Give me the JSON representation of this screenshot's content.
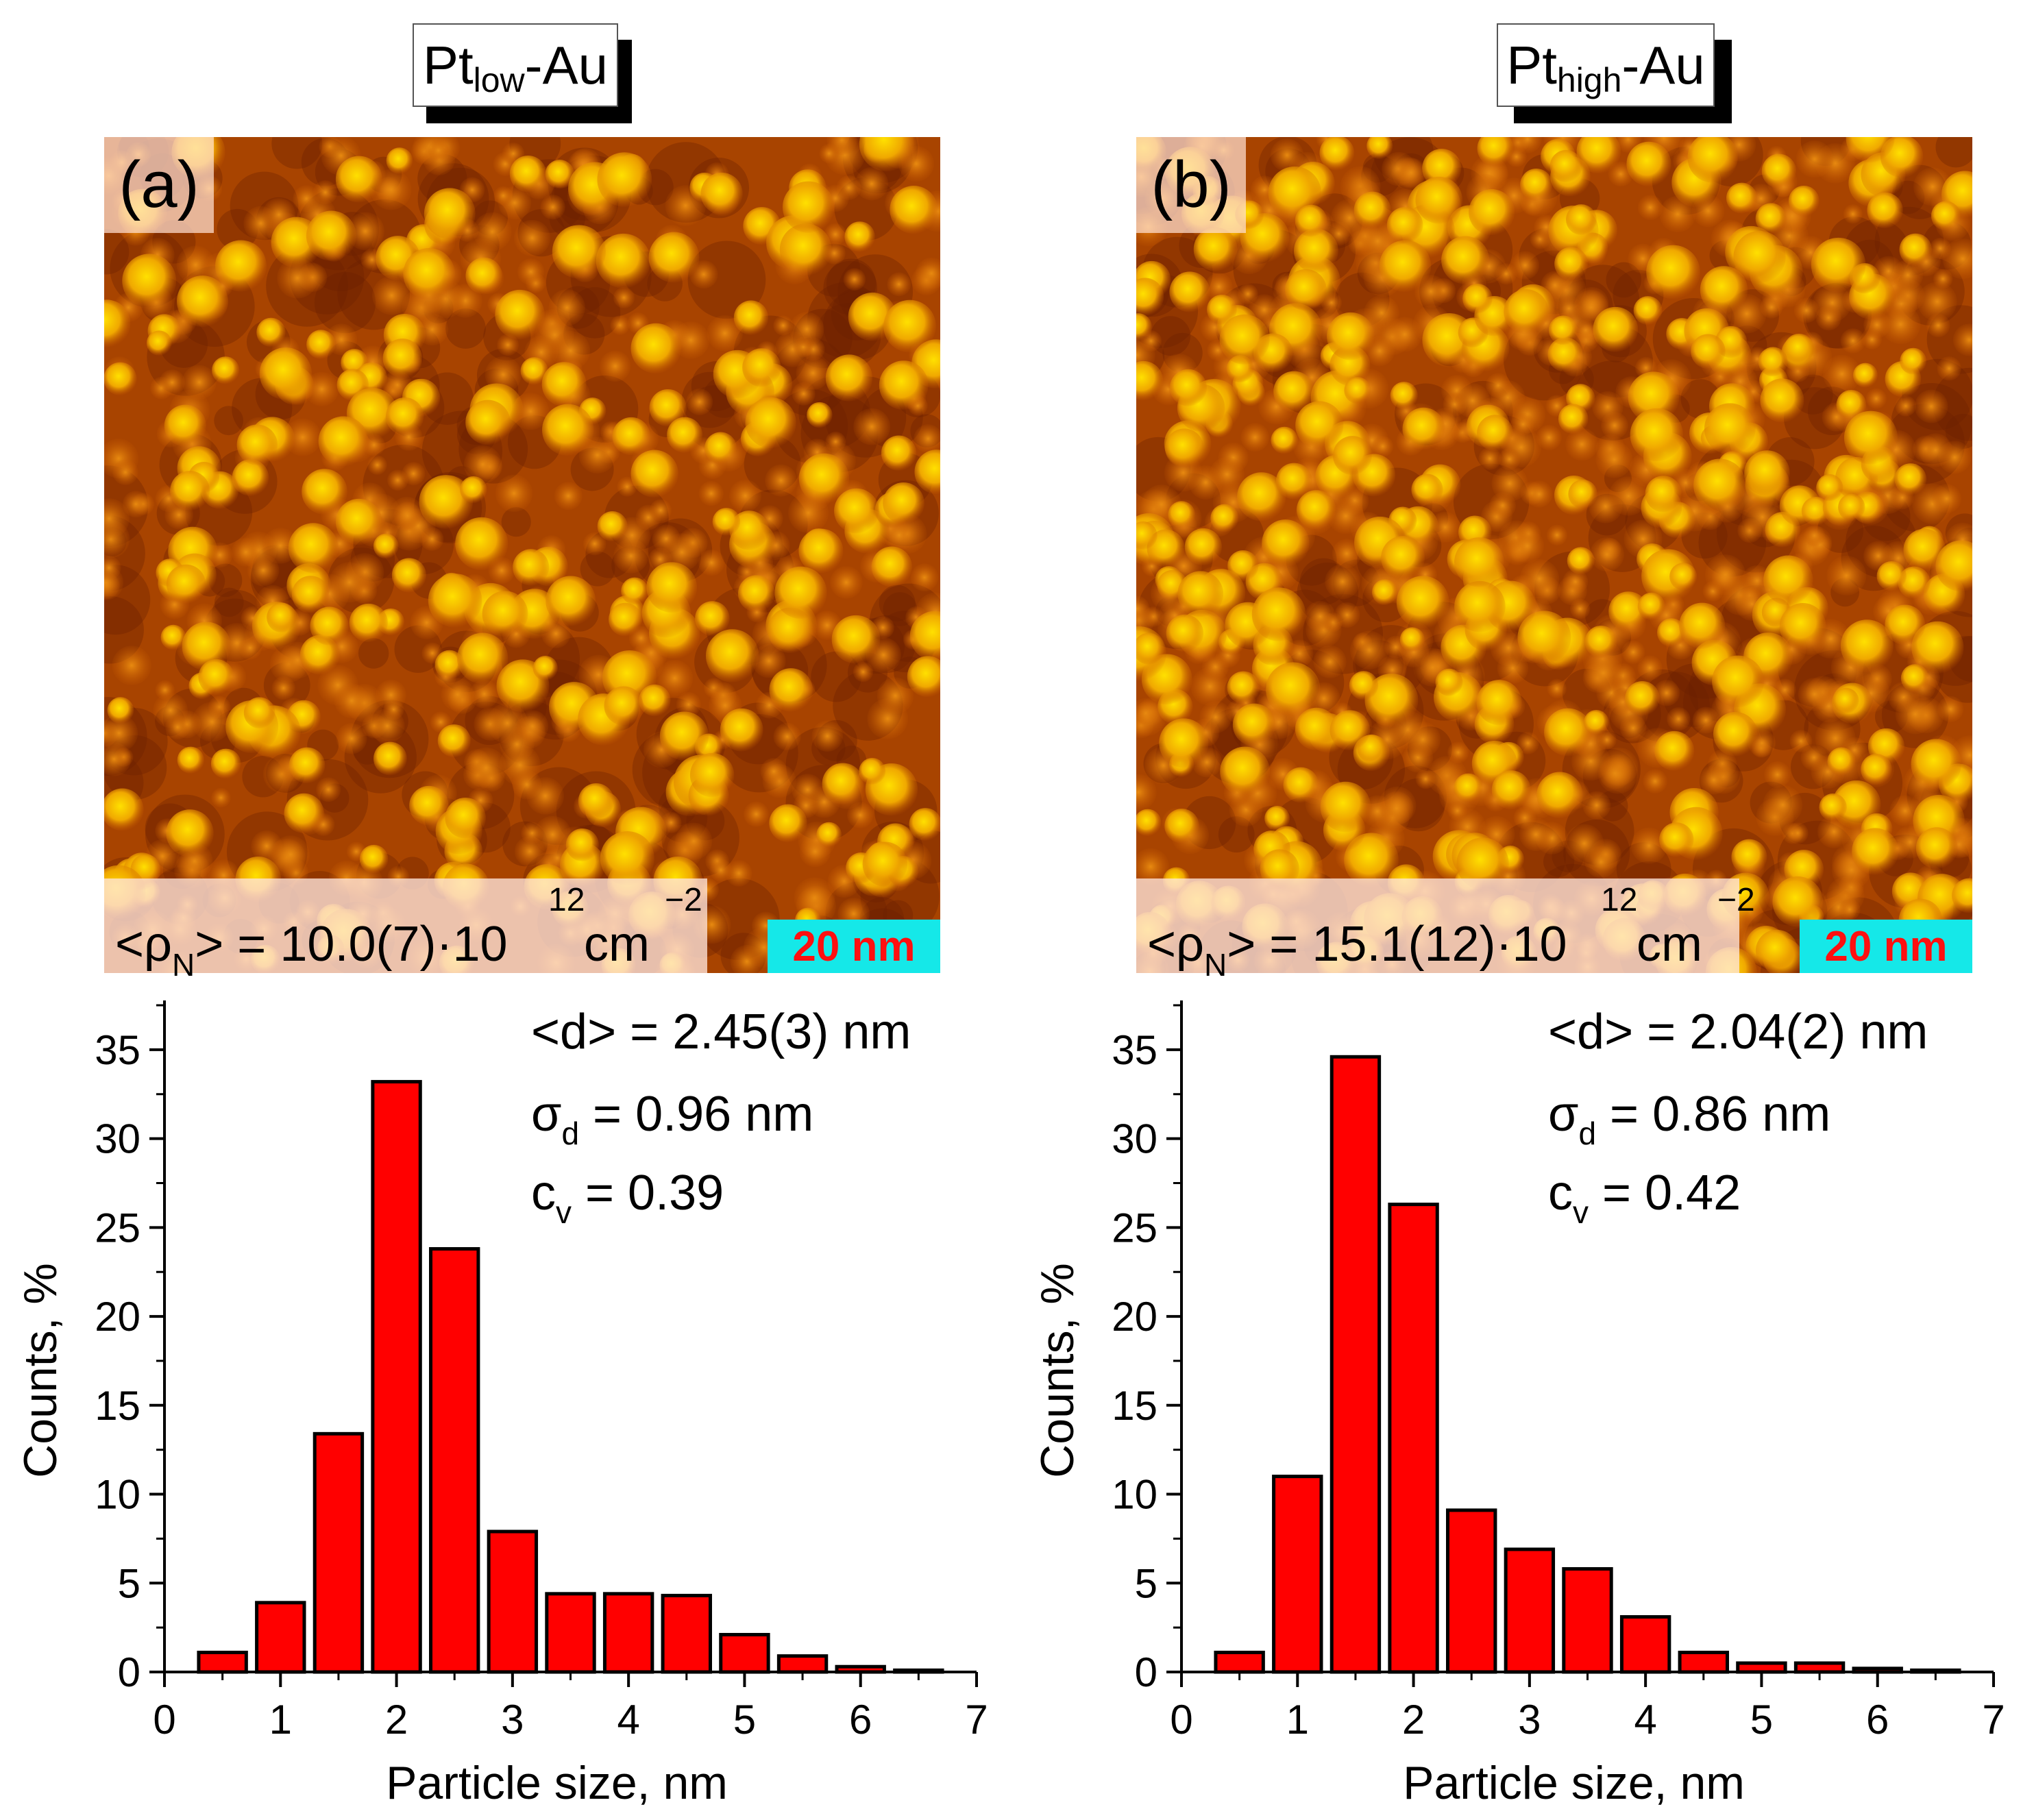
{
  "figure": {
    "panels": [
      {
        "title_main": "Pt",
        "title_sub": "low",
        "title_suffix": "-Au",
        "label": "(a)",
        "density": {
          "prefix": "<ρ",
          "sub": "N",
          "value": "> = 10.0(7)·10",
          "exp": "12",
          "unit": " cm",
          "unit_exp": "−2"
        },
        "scale_bar": "20 nm",
        "stats": {
          "mean": "<d> = 2.45(3) nm",
          "sigma_symbol": "σ",
          "sigma_sub": "d",
          "sigma_value": " = 0.96 nm",
          "cv_symbol": "c",
          "cv_sub": "v",
          "cv_value": " = 0.39"
        }
      },
      {
        "title_main": "Pt",
        "title_sub": "high",
        "title_suffix": "-Au",
        "label": "(b)",
        "density": {
          "prefix": "<ρ",
          "sub": "N",
          "value": "> = 15.1(12)·10",
          "exp": "12",
          "unit": " cm",
          "unit_exp": "−2"
        },
        "scale_bar": "20 nm",
        "stats": {
          "mean": "<d> = 2.04(2) nm",
          "sigma_symbol": "σ",
          "sigma_sub": "d",
          "sigma_value": " = 0.86 nm",
          "cv_symbol": "c",
          "cv_sub": "v",
          "cv_value": " = 0.42"
        }
      }
    ],
    "colors": {
      "bar_fill": "#ff0000",
      "bar_stroke": "#000000",
      "scale_bg": "#15e8e8",
      "scale_text": "#ff1010",
      "afm_dark": "#6a1f00",
      "afm_mid": "#c85a00",
      "afm_bright": "#ffe000"
    }
  },
  "chart_data": [
    {
      "type": "bar",
      "title": "Pt_low-Au",
      "xlabel": "Particle size, nm",
      "ylabel": "Counts, %",
      "xlim": [
        0,
        7
      ],
      "ylim": [
        0,
        37
      ],
      "xticks": [
        0,
        1,
        2,
        3,
        4,
        5,
        6,
        7
      ],
      "yticks": [
        0,
        5,
        10,
        15,
        20,
        25,
        30,
        35
      ],
      "bin_width": 0.5,
      "x": [
        0.5,
        1.0,
        1.5,
        2.0,
        2.5,
        3.0,
        3.5,
        4.0,
        4.5,
        5.0,
        5.5,
        6.0,
        6.5
      ],
      "values": [
        1.1,
        3.9,
        13.4,
        33.2,
        23.8,
        7.9,
        4.4,
        4.4,
        4.3,
        2.1,
        0.9,
        0.3,
        0.1
      ]
    },
    {
      "type": "bar",
      "title": "Pt_high-Au",
      "xlabel": "Particle size, nm",
      "ylabel": "Counts, %",
      "xlim": [
        0,
        7
      ],
      "ylim": [
        0,
        37
      ],
      "xticks": [
        0,
        1,
        2,
        3,
        4,
        5,
        6,
        7
      ],
      "yticks": [
        0,
        5,
        10,
        15,
        20,
        25,
        30,
        35
      ],
      "bin_width": 0.5,
      "x": [
        0.5,
        1.0,
        1.5,
        2.0,
        2.5,
        3.0,
        3.5,
        4.0,
        4.5,
        5.0,
        5.5,
        6.0,
        6.5
      ],
      "values": [
        1.1,
        11.0,
        34.6,
        26.3,
        9.1,
        6.9,
        5.8,
        3.1,
        1.1,
        0.5,
        0.5,
        0.2,
        0.1
      ]
    }
  ]
}
